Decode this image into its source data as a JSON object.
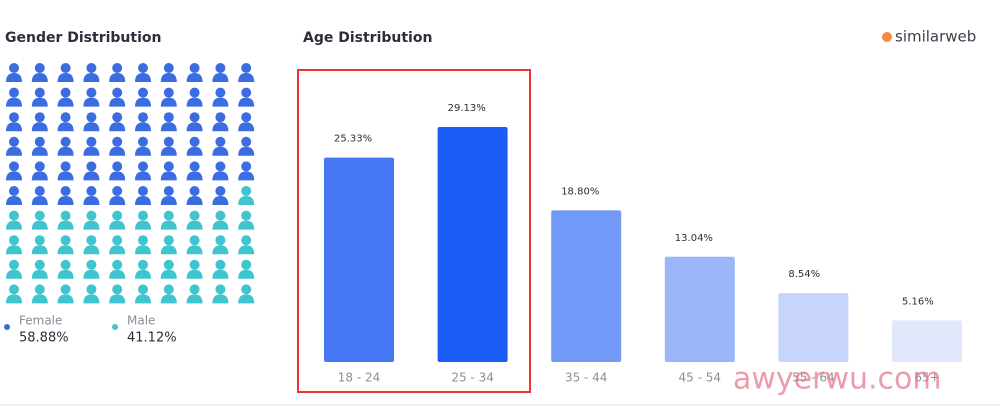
{
  "logo": "similarweb",
  "watermark": "awyerwu.com",
  "chart_data": [
    {
      "type": "pictogram",
      "title": "Gender Distribution",
      "series": [
        {
          "name": "Female",
          "color": "#3b6de0",
          "values": [
            58.88
          ],
          "value_labels": [
            "58.88%"
          ]
        },
        {
          "name": "Male",
          "color": "#3ec5cf",
          "values": [
            41.12
          ],
          "value_labels": [
            "41.12%"
          ]
        }
      ]
    },
    {
      "type": "bar",
      "title": "Age Distribution",
      "categories": [
        "18 - 24",
        "25 - 34",
        "35 - 44",
        "45 - 54",
        "55 - 64",
        "65+"
      ],
      "values": [
        25.33,
        29.13,
        18.8,
        13.04,
        8.54,
        5.16
      ],
      "value_labels": [
        "25.33%",
        "29.13%",
        "18.80%",
        "13.04%",
        "8.54%",
        "5.16%"
      ],
      "colors": [
        "#4677f5",
        "#1b5cf7",
        "#7099f8",
        "#9bb5f9",
        "#c7d5fb",
        "#e1e8fc"
      ]
    }
  ]
}
